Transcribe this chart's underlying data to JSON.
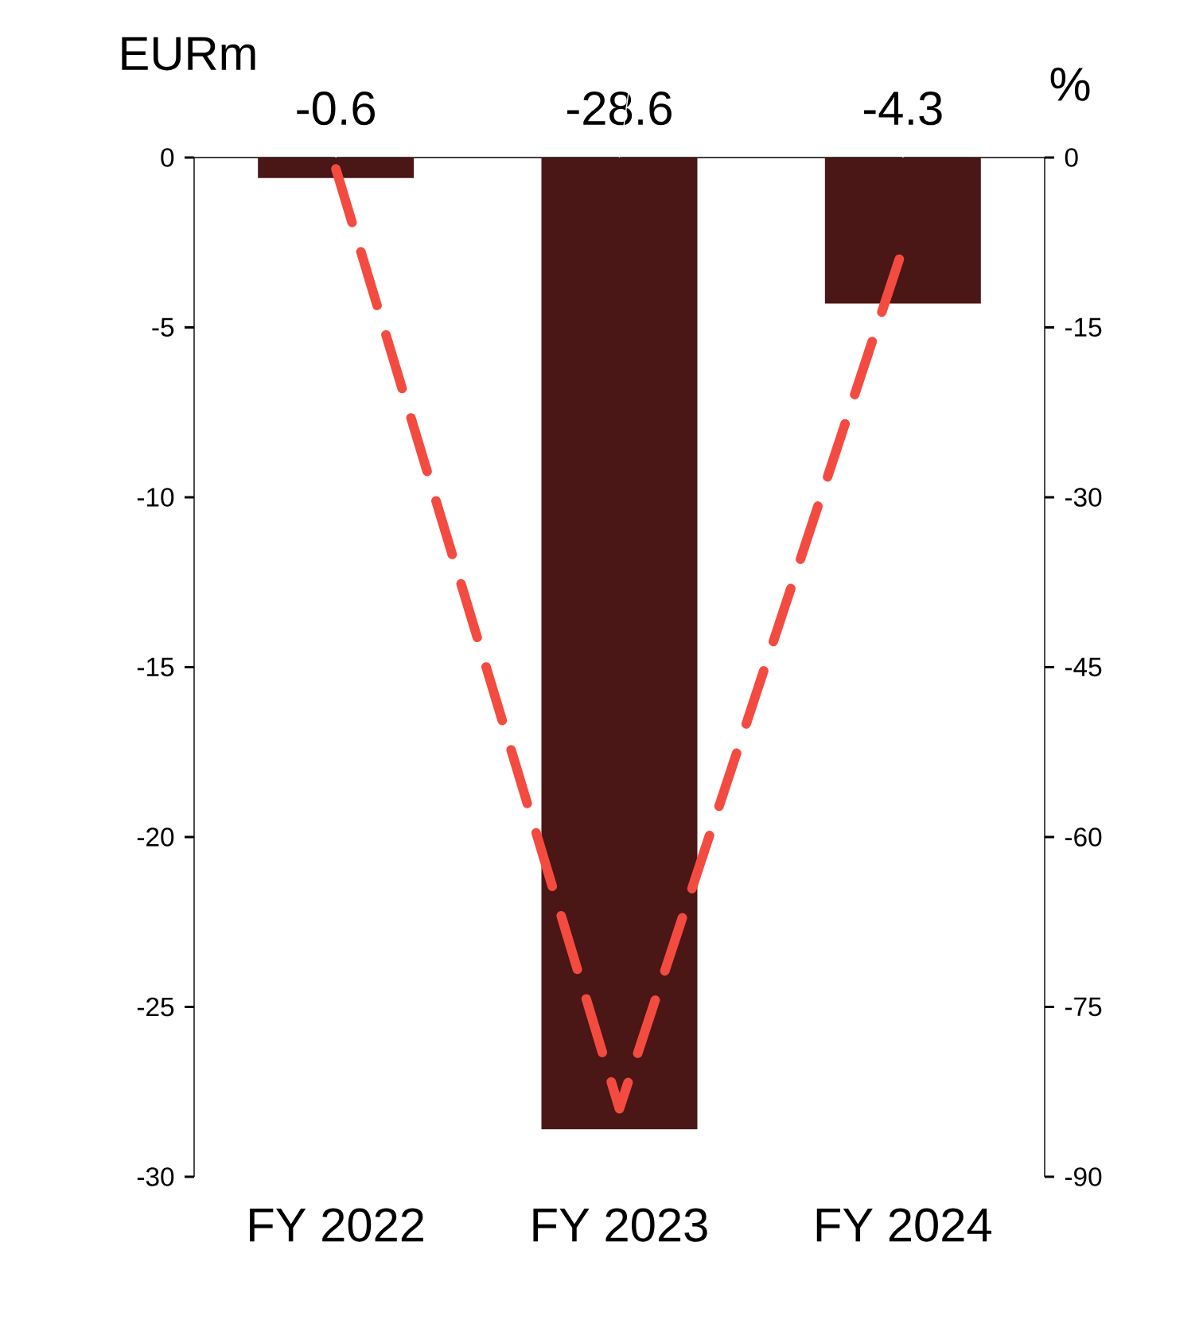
{
  "chart_data": {
    "type": "bar",
    "categories": [
      "FY 2022",
      "FY 2023",
      "FY 2024"
    ],
    "ylabel": "EURm",
    "y2label": "%",
    "ylim": [
      -30,
      0
    ],
    "yticks": [
      0,
      -5,
      -10,
      -15,
      -20,
      -25,
      -30
    ],
    "y2lim": [
      -90,
      0
    ],
    "y2ticks": [
      0,
      -15,
      -30,
      -45,
      -60,
      -75,
      -90
    ],
    "series": [
      {
        "color": "#4a1616",
        "values": [
          -0.6,
          -28.6,
          -4.3
        ],
        "value_labels": [
          "-0.6",
          "-28.6",
          "-4.3"
        ]
      },
      {
        "type": "line",
        "axis": "y2",
        "color": "#f44b41",
        "line_style": "dashed",
        "values": [
          -1,
          -84,
          -8
        ]
      }
    ]
  }
}
